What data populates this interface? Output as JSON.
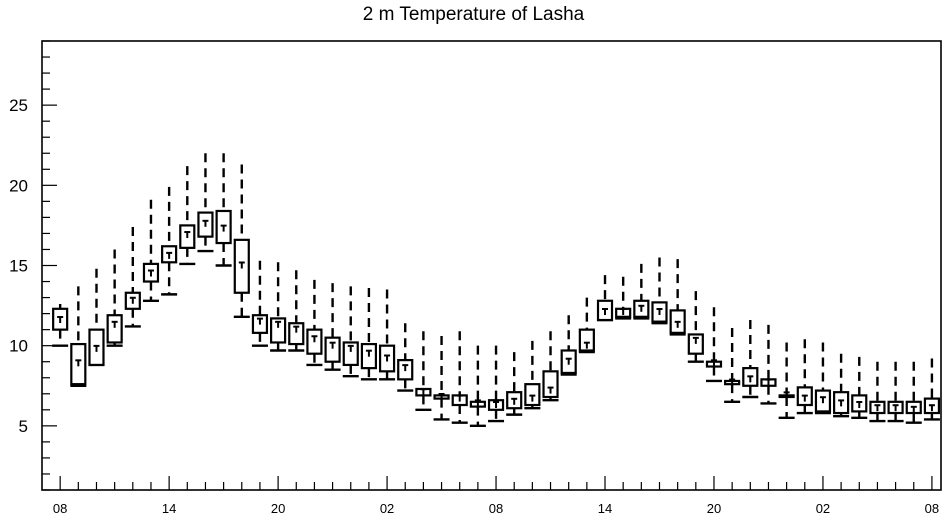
{
  "chart_data": {
    "type": "boxplot",
    "title": "2 m Temperature of Lasha",
    "xlabel": "",
    "ylabel": "",
    "ylim": [
      1,
      29
    ],
    "yticks": [
      5,
      10,
      15,
      20,
      25
    ],
    "x_hours_range": [
      -1,
      48.5
    ],
    "x_tick_labels": [
      {
        "h": 0,
        "label": "08"
      },
      {
        "h": 6,
        "label": "14"
      },
      {
        "h": 12,
        "label": "20"
      },
      {
        "h": 18,
        "label": "02"
      },
      {
        "h": 24,
        "label": "08"
      },
      {
        "h": 30,
        "label": "14"
      },
      {
        "h": 36,
        "label": "20"
      },
      {
        "h": 42,
        "label": "02"
      },
      {
        "h": 48,
        "label": "08"
      }
    ],
    "boxes": [
      {
        "h": 0,
        "min": 10.0,
        "q1": 11.0,
        "median": 11.6,
        "q3": 12.3,
        "max": 12.6
      },
      {
        "h": 1,
        "min": 7.5,
        "q1": 7.6,
        "median": 8.9,
        "q3": 10.1,
        "max": 13.7
      },
      {
        "h": 2,
        "min": 8.8,
        "q1": 8.8,
        "median": 9.8,
        "q3": 11.0,
        "max": 14.8
      },
      {
        "h": 3,
        "min": 10.0,
        "q1": 10.2,
        "median": 11.3,
        "q3": 11.9,
        "max": 16.0
      },
      {
        "h": 4,
        "min": 11.2,
        "q1": 12.3,
        "median": 12.8,
        "q3": 13.3,
        "max": 17.4
      },
      {
        "h": 5,
        "min": 12.8,
        "q1": 14.0,
        "median": 14.5,
        "q3": 15.1,
        "max": 19.1
      },
      {
        "h": 6,
        "min": 13.2,
        "q1": 15.2,
        "median": 15.6,
        "q3": 16.2,
        "max": 19.9
      },
      {
        "h": 7,
        "min": 15.1,
        "q1": 16.1,
        "median": 16.9,
        "q3": 17.5,
        "max": 21.2
      },
      {
        "h": 8,
        "min": 15.9,
        "q1": 16.8,
        "median": 17.6,
        "q3": 18.3,
        "max": 22.0
      },
      {
        "h": 9,
        "min": 15.0,
        "q1": 16.4,
        "median": 17.3,
        "q3": 18.4,
        "max": 22.0
      },
      {
        "h": 10,
        "min": 11.8,
        "q1": 13.3,
        "median": 15.0,
        "q3": 16.6,
        "max": 21.3
      },
      {
        "h": 11,
        "min": 10.0,
        "q1": 10.8,
        "median": 11.5,
        "q3": 11.9,
        "max": 15.3
      },
      {
        "h": 12,
        "min": 9.7,
        "q1": 10.2,
        "median": 11.3,
        "q3": 11.7,
        "max": 15.2
      },
      {
        "h": 13,
        "min": 9.7,
        "q1": 10.1,
        "median": 11.0,
        "q3": 11.4,
        "max": 14.7
      },
      {
        "h": 14,
        "min": 8.8,
        "q1": 9.5,
        "median": 10.4,
        "q3": 11.0,
        "max": 14.1
      },
      {
        "h": 15,
        "min": 8.5,
        "q1": 9.0,
        "median": 10.0,
        "q3": 10.5,
        "max": 13.9
      },
      {
        "h": 16,
        "min": 8.1,
        "q1": 8.8,
        "median": 9.8,
        "q3": 10.2,
        "max": 13.7
      },
      {
        "h": 17,
        "min": 7.9,
        "q1": 8.6,
        "median": 9.5,
        "q3": 10.1,
        "max": 13.6
      },
      {
        "h": 18,
        "min": 7.9,
        "q1": 8.4,
        "median": 9.2,
        "q3": 10.0,
        "max": 13.5
      },
      {
        "h": 19,
        "min": 7.2,
        "q1": 7.9,
        "median": 8.6,
        "q3": 9.1,
        "max": 11.4
      },
      {
        "h": 20,
        "min": 6.0,
        "q1": 6.9,
        "median": 7.1,
        "q3": 7.3,
        "max": 10.9
      },
      {
        "h": 21,
        "min": 5.4,
        "q1": 6.7,
        "median": 6.8,
        "q3": 6.9,
        "max": 10.6
      },
      {
        "h": 22,
        "min": 5.2,
        "q1": 6.3,
        "median": 6.7,
        "q3": 6.9,
        "max": 10.9
      },
      {
        "h": 23,
        "min": 5.0,
        "q1": 6.2,
        "median": 6.4,
        "q3": 6.5,
        "max": 10.0
      },
      {
        "h": 24,
        "min": 5.3,
        "q1": 6.0,
        "median": 6.3,
        "q3": 6.6,
        "max": 10.0
      },
      {
        "h": 25,
        "min": 5.7,
        "q1": 6.1,
        "median": 6.5,
        "q3": 7.1,
        "max": 9.6
      },
      {
        "h": 26,
        "min": 6.1,
        "q1": 6.3,
        "median": 6.7,
        "q3": 7.6,
        "max": 10.3
      },
      {
        "h": 27,
        "min": 6.6,
        "q1": 6.8,
        "median": 7.2,
        "q3": 8.4,
        "max": 10.9
      },
      {
        "h": 28,
        "min": 8.2,
        "q1": 8.3,
        "median": 9.0,
        "q3": 9.7,
        "max": 11.9
      },
      {
        "h": 29,
        "min": 9.6,
        "q1": 9.7,
        "median": 10.0,
        "q3": 11.0,
        "max": 13.0
      },
      {
        "h": 30,
        "min": 11.6,
        "q1": 11.6,
        "median": 12.1,
        "q3": 12.8,
        "max": 14.4
      },
      {
        "h": 31,
        "min": 11.7,
        "q1": 11.8,
        "median": 12.1,
        "q3": 12.3,
        "max": 14.3
      },
      {
        "h": 32,
        "min": 11.7,
        "q1": 11.8,
        "median": 12.3,
        "q3": 12.8,
        "max": 15.1
      },
      {
        "h": 33,
        "min": 11.4,
        "q1": 11.5,
        "median": 12.1,
        "q3": 12.7,
        "max": 15.5
      },
      {
        "h": 34,
        "min": 10.7,
        "q1": 10.8,
        "median": 11.3,
        "q3": 12.2,
        "max": 15.4
      },
      {
        "h": 35,
        "min": 9.0,
        "q1": 9.5,
        "median": 10.3,
        "q3": 10.7,
        "max": 13.4
      },
      {
        "h": 36,
        "min": 7.8,
        "q1": 8.7,
        "median": 8.9,
        "q3": 9.0,
        "max": 12.4
      },
      {
        "h": 37,
        "min": 6.5,
        "q1": 7.6,
        "median": 7.7,
        "q3": 7.8,
        "max": 11.1
      },
      {
        "h": 38,
        "min": 6.8,
        "q1": 7.5,
        "median": 7.9,
        "q3": 8.6,
        "max": 11.6
      },
      {
        "h": 39,
        "min": 6.4,
        "q1": 7.5,
        "median": 7.7,
        "q3": 7.9,
        "max": 11.3
      },
      {
        "h": 40,
        "min": 5.5,
        "q1": 6.8,
        "median": 6.9,
        "q3": 6.9,
        "max": 10.2
      },
      {
        "h": 41,
        "min": 5.8,
        "q1": 6.3,
        "median": 6.7,
        "q3": 7.4,
        "max": 10.4
      },
      {
        "h": 42,
        "min": 5.8,
        "q1": 5.9,
        "median": 6.6,
        "q3": 7.2,
        "max": 10.2
      },
      {
        "h": 43,
        "min": 5.6,
        "q1": 5.8,
        "median": 6.4,
        "q3": 7.1,
        "max": 9.5
      },
      {
        "h": 44,
        "min": 5.5,
        "q1": 5.9,
        "median": 6.3,
        "q3": 6.9,
        "max": 9.3
      },
      {
        "h": 45,
        "min": 5.3,
        "q1": 5.8,
        "median": 6.1,
        "q3": 6.5,
        "max": 9.0
      },
      {
        "h": 46,
        "min": 5.3,
        "q1": 5.8,
        "median": 6.1,
        "q3": 6.5,
        "max": 9.0
      },
      {
        "h": 47,
        "min": 5.2,
        "q1": 5.8,
        "median": 6.0,
        "q3": 6.5,
        "max": 9.0
      },
      {
        "h": 48,
        "min": 5.4,
        "q1": 5.8,
        "median": 6.1,
        "q3": 6.7,
        "max": 9.2
      }
    ]
  }
}
